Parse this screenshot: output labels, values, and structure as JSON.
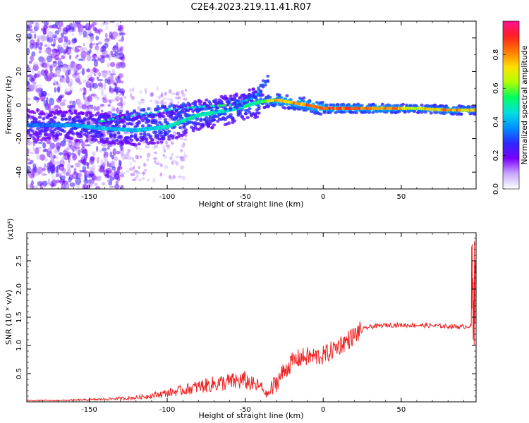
{
  "title": "C2E4.2023.219.11.41.R07",
  "chart_data": [
    {
      "type": "heatmap",
      "xlabel": "Height of straight line (km)",
      "ylabel": "Frequency (Hz)",
      "xlim": [
        -190,
        98
      ],
      "ylim": [
        -50,
        50
      ],
      "xticks": [
        -150,
        -100,
        -50,
        0,
        50
      ],
      "yticks": [
        -40,
        -20,
        0,
        20,
        40
      ],
      "colorbar": {
        "label": "Normalized spectral amplitude",
        "range": [
          0.0,
          1.0
        ],
        "ticks": [
          "0.0",
          "0.2",
          "0.4",
          "0.6",
          "0.8"
        ],
        "colors": [
          "#ffffff",
          "#c8a8ff",
          "#7a00ff",
          "#2a28ff",
          "#0090ff",
          "#00e0e0",
          "#00ff60",
          "#b0ff00",
          "#ffe000",
          "#ff7a00",
          "#ff2020",
          "#ff1090"
        ]
      },
      "ridge": [
        {
          "x": -180,
          "f": -12,
          "a": 0.35
        },
        {
          "x": -160,
          "f": -12,
          "a": 0.4
        },
        {
          "x": -140,
          "f": -14,
          "a": 0.45
        },
        {
          "x": -120,
          "f": -15,
          "a": 0.45
        },
        {
          "x": -100,
          "f": -13,
          "a": 0.5
        },
        {
          "x": -80,
          "f": -6,
          "a": 0.5
        },
        {
          "x": -60,
          "f": -3,
          "a": 0.5
        },
        {
          "x": -40,
          "f": 2,
          "a": 0.55
        },
        {
          "x": -30,
          "f": 3,
          "a": 0.8
        },
        {
          "x": -10,
          "f": 0,
          "a": 0.85
        },
        {
          "x": 0,
          "f": -2,
          "a": 0.9
        },
        {
          "x": 20,
          "f": -2,
          "a": 0.9
        },
        {
          "x": 40,
          "f": -2,
          "a": 0.88
        },
        {
          "x": 60,
          "f": -2,
          "a": 0.7
        },
        {
          "x": 80,
          "f": -3,
          "a": 0.85
        },
        {
          "x": 95,
          "f": -3,
          "a": 0.8
        }
      ],
      "branch": [
        {
          "x": -145,
          "f": -10
        },
        {
          "x": -120,
          "f": -6
        },
        {
          "x": -100,
          "f": -3
        },
        {
          "x": -80,
          "f": -1
        },
        {
          "x": -60,
          "f": 0
        },
        {
          "x": -45,
          "f": 4
        },
        {
          "x": -35,
          "f": 16
        }
      ]
    },
    {
      "type": "line",
      "xlabel": "Height of straight line (km)",
      "ylabel": "SNR (10 * v/v)",
      "scale_label": "(x10⁴)",
      "xlim": [
        -190,
        98
      ],
      "ylim": [
        0,
        3.0
      ],
      "xticks": [
        -150,
        -100,
        -50,
        0,
        50
      ],
      "yticks": [
        "0.5",
        "1.0",
        "1.5",
        "2.0",
        "2.5"
      ],
      "series": [
        {
          "color": "#ee2222",
          "x": [
            -190,
            -170,
            -150,
            -140,
            -130,
            -120,
            -110,
            -100,
            -90,
            -80,
            -70,
            -60,
            -50,
            -45,
            -40,
            -36,
            -30,
            -25,
            -20,
            -15,
            -10,
            -5,
            0,
            5,
            10,
            15,
            20,
            25,
            30,
            40,
            50,
            60,
            70,
            80,
            90,
            95,
            97
          ],
          "y": [
            0.02,
            0.02,
            0.03,
            0.04,
            0.05,
            0.06,
            0.09,
            0.13,
            0.17,
            0.22,
            0.26,
            0.29,
            0.31,
            0.25,
            0.22,
            0.1,
            0.35,
            0.55,
            0.7,
            0.78,
            0.8,
            0.8,
            0.82,
            0.9,
            1.0,
            1.08,
            1.18,
            1.28,
            1.33,
            1.36,
            1.36,
            1.36,
            1.35,
            1.34,
            1.33,
            1.35,
            2.0
          ]
        }
      ]
    }
  ]
}
